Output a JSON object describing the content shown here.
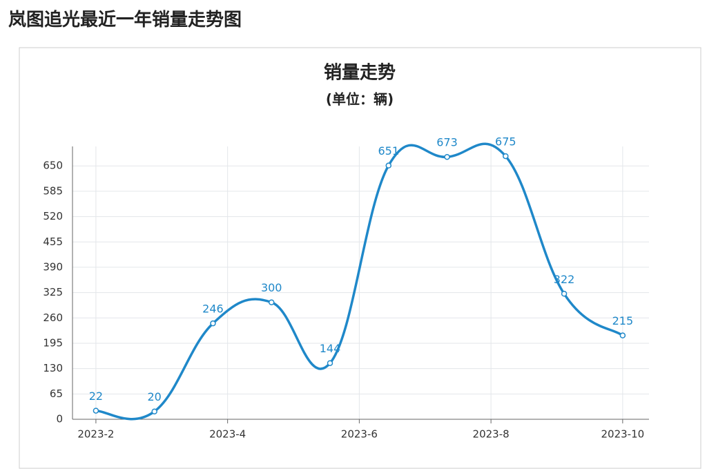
{
  "heading": "岚图追光最近一年销量走势图",
  "chart_data": {
    "type": "line",
    "title": "销量走势",
    "subtitle": "(单位：辆)",
    "x": [
      0,
      1,
      2,
      3,
      4,
      5,
      6,
      7,
      8,
      9
    ],
    "series": [
      {
        "name": "销量",
        "color": "#1f88c9",
        "values": [
          22,
          20,
          246,
          300,
          144,
          651,
          673,
          675,
          322,
          215
        ]
      }
    ],
    "xlim": [
      -0.4,
      9.45
    ],
    "xticks": [
      {
        "value": 0,
        "label": "2023-2"
      },
      {
        "value": 2.25,
        "label": "2023-4"
      },
      {
        "value": 4.5,
        "label": "2023-6"
      },
      {
        "value": 6.75,
        "label": "2023-8"
      },
      {
        "value": 9,
        "label": "2023-10"
      }
    ],
    "ylim": [
      0,
      700
    ],
    "yticks": [
      0,
      65,
      130,
      195,
      260,
      325,
      390,
      455,
      520,
      585,
      650
    ],
    "grid": true
  }
}
